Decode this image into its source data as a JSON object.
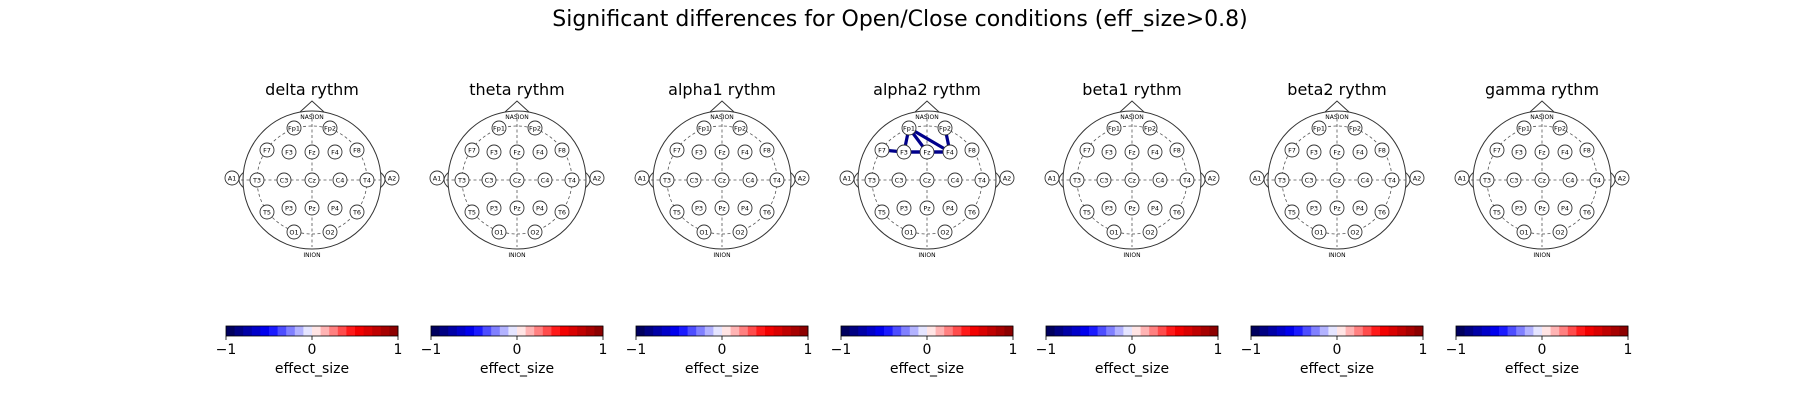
{
  "figure": {
    "title": "Significant differences for Open/Close conditions (eff_size>0.8)"
  },
  "head_landmarks": {
    "nasion": "NASION",
    "inion": "INION"
  },
  "electrodes": [
    "Fp1",
    "Fp2",
    "F7",
    "F3",
    "Fz",
    "F4",
    "F8",
    "A1",
    "T3",
    "C3",
    "Cz",
    "C4",
    "T4",
    "A2",
    "T5",
    "P3",
    "Pz",
    "P4",
    "T6",
    "O1",
    "O2"
  ],
  "colorbar": {
    "label": "effect_size",
    "ticks": [
      "−1",
      "0",
      "1"
    ],
    "range": [
      -1,
      1
    ],
    "colormap": "seismic",
    "levels": 20
  },
  "connection_color": "#00008b",
  "panels": [
    {
      "title": "delta rythm",
      "connections": []
    },
    {
      "title": "theta rythm",
      "connections": []
    },
    {
      "title": "alpha1 rythm",
      "connections": []
    },
    {
      "title": "alpha2 rythm",
      "connections": [
        [
          "F7",
          "F3"
        ],
        [
          "F3",
          "Fp1"
        ],
        [
          "Fp1",
          "Fz"
        ],
        [
          "Fp1",
          "F4"
        ],
        [
          "F3",
          "F4"
        ],
        [
          "F3",
          "Fz"
        ],
        [
          "Fz",
          "F4"
        ],
        [
          "F4",
          "Fp2"
        ]
      ]
    },
    {
      "title": "beta1 rythm",
      "connections": []
    },
    {
      "title": "beta2 rythm",
      "connections": []
    },
    {
      "title": "gamma rythm",
      "connections": []
    }
  ]
}
